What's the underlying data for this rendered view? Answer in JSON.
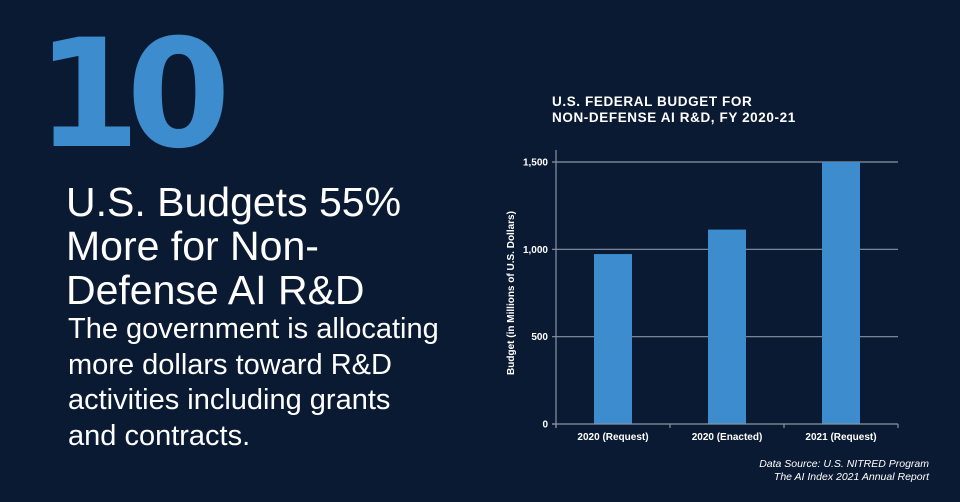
{
  "colors": {
    "background": "#0b1a33",
    "accent": "#3d8dce",
    "bar": "#3d8dce",
    "grid": "#8a93a3",
    "text": "#ffffff"
  },
  "rank_number": "10",
  "headline": {
    "lines": [
      "U.S. Budgets 55%",
      "More for Non-",
      "Defense AI R&D"
    ]
  },
  "description": {
    "lines": [
      "The government is allocating",
      "more dollars toward R&D",
      "activities including grants",
      "and contracts."
    ]
  },
  "source": {
    "lines": [
      "Data Source: U.S. NITRED Program",
      "The AI Index 2021 Annual Report"
    ]
  },
  "chart_data": {
    "type": "bar",
    "title": "U.S. FEDERAL BUDGET FOR NON-DEFENSE AI R&D, FY 2020-21",
    "title_lines": [
      "U.S. FEDERAL BUDGET FOR",
      "NON-DEFENSE AI R&D, FY 2020-21"
    ],
    "xlabel": "",
    "ylabel": "Budget (in Millions of U.S. Dollars)",
    "categories": [
      "2020 (Request)",
      "2020 (Enacted)",
      "2021 (Request)"
    ],
    "values": [
      973,
      1113,
      1500
    ],
    "ylim": [
      0,
      1500
    ],
    "yticks": [
      0,
      500,
      1000,
      1500
    ],
    "ytick_labels": [
      "0",
      "500",
      "1,000",
      "1,500"
    ],
    "grid": true,
    "legend": "none"
  }
}
